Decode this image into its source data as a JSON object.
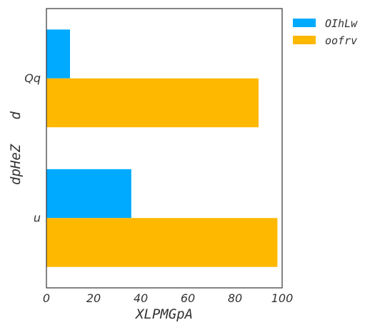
{
  "chart_data": {
    "type": "bar",
    "orientation": "horizontal",
    "xlabel": "XLPMGpA",
    "ylabel": "dpHeZ   d",
    "xlim": [
      0,
      100
    ],
    "xticks": [
      0,
      20,
      40,
      60,
      80,
      100
    ],
    "categories": [
      "Qq",
      "u"
    ],
    "series": [
      {
        "name": "OIhLw",
        "color": "#00aaff",
        "values": [
          10,
          36
        ]
      },
      {
        "name": "oofrv",
        "color": "#ffb800",
        "values": [
          90,
          98
        ]
      }
    ],
    "legend_position": "outside-top-right",
    "grid": false
  }
}
